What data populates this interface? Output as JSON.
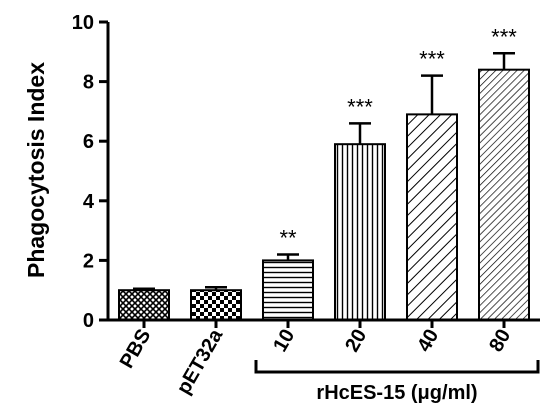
{
  "chart_data": {
    "type": "bar",
    "ylabel": "Phagocytosis Index",
    "xlabel": "",
    "ylim": [
      0,
      10
    ],
    "yticks": [
      "0",
      "2",
      "4",
      "6",
      "8",
      "10"
    ],
    "categories": [
      "PBS",
      "pET32a",
      "10",
      "20",
      "40",
      "80"
    ],
    "values": [
      1.0,
      1.0,
      2.0,
      5.9,
      6.9,
      8.4
    ],
    "errors": [
      0.05,
      0.1,
      0.2,
      0.7,
      1.3,
      0.55
    ],
    "significance": [
      "",
      "",
      "**",
      "***",
      "***",
      "***"
    ],
    "patterns": [
      "crosshatch",
      "checker",
      "horizontal",
      "vertical",
      "diagonal-wide",
      "diagonal-fine"
    ],
    "group_label": "rHcES-15 (μg/ml)",
    "grid": false
  }
}
